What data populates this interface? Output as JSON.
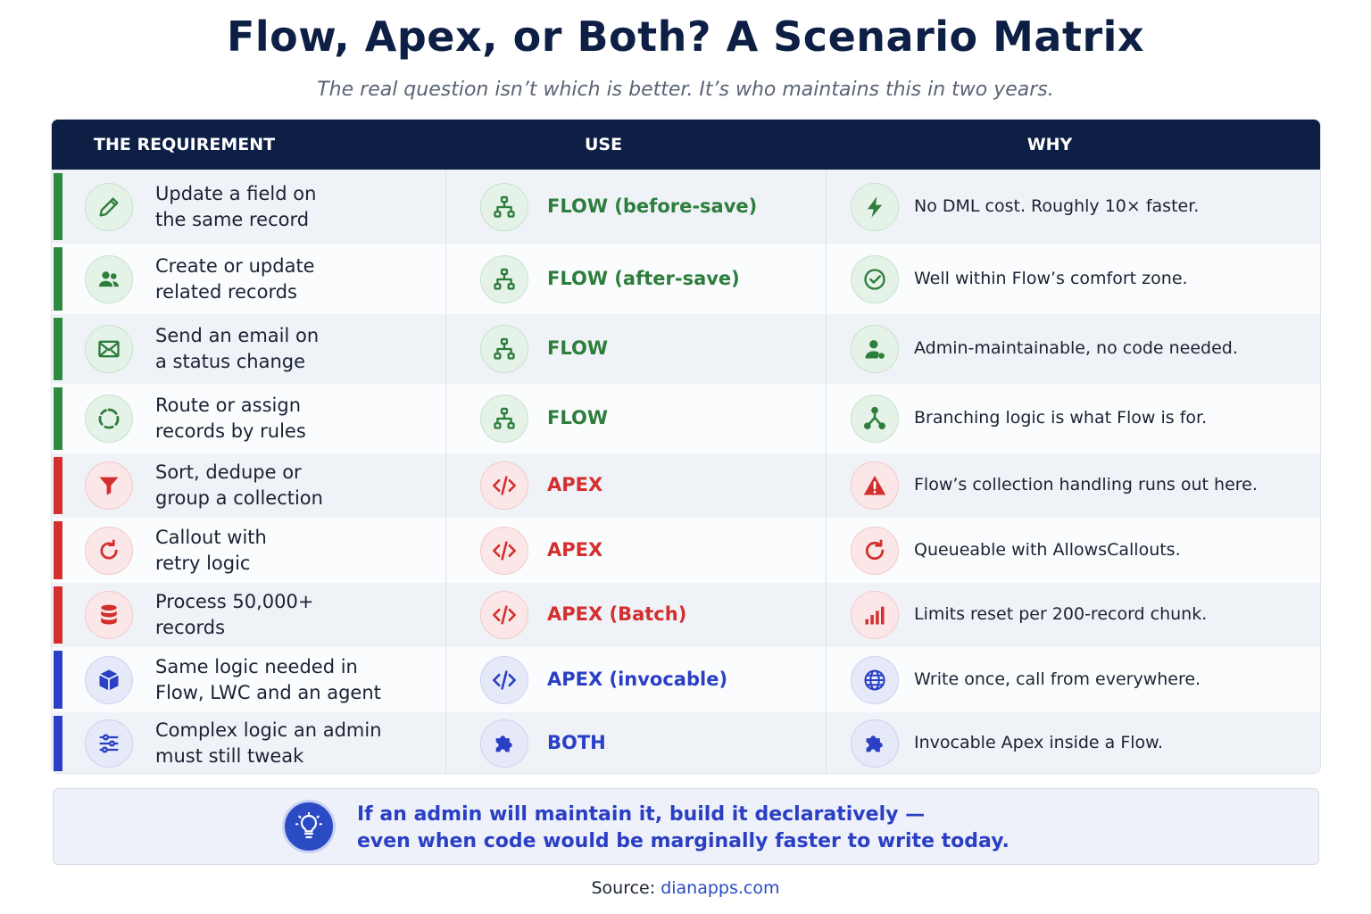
{
  "title": "Flow, Apex, or Both? A Scenario Matrix",
  "subtitle": "The real question isn’t which is better. It’s who maintains this in two years.",
  "headers": {
    "requirement": "THE REQUIREMENT",
    "use": "USE",
    "why": "WHY"
  },
  "colors": {
    "header_bg": "#0e1f45",
    "flow_green": "#2d8a3e",
    "apex_red": "#d32f2f",
    "invocable_blue": "#2a3fc4"
  },
  "rows": [
    {
      "category": "flow",
      "req_icon": "pencil-icon",
      "req_line1": "Update a field on",
      "req_line2": "the same record",
      "use_icon": "flow-hierarchy-icon",
      "use": "FLOW (before-save)",
      "why_icon": "lightning-icon",
      "why": "No DML cost. Roughly 10× faster."
    },
    {
      "category": "flow",
      "req_icon": "users-icon",
      "req_line1": "Create or update",
      "req_line2": "related records",
      "use_icon": "flow-hierarchy-icon",
      "use": "FLOW (after-save)",
      "why_icon": "check-circle-icon",
      "why": "Well within Flow’s comfort zone."
    },
    {
      "category": "flow",
      "req_icon": "envelope-icon",
      "req_line1": "Send an email on",
      "req_line2": "a status change",
      "use_icon": "flow-hierarchy-icon",
      "use": "FLOW",
      "why_icon": "admin-user-icon",
      "why": "Admin-maintainable, no code needed."
    },
    {
      "category": "flow",
      "req_icon": "route-cycle-icon",
      "req_line1": "Route or assign",
      "req_line2": "records by rules",
      "use_icon": "flow-hierarchy-icon",
      "use": "FLOW",
      "why_icon": "branch-icon",
      "why": "Branching logic is what Flow is for."
    },
    {
      "category": "apex",
      "req_icon": "filter-icon",
      "req_line1": "Sort, dedupe or",
      "req_line2": "group a collection",
      "use_icon": "code-icon",
      "use": "APEX",
      "why_icon": "warning-icon",
      "why": "Flow’s collection handling runs out here."
    },
    {
      "category": "apex",
      "req_icon": "retry-icon",
      "req_line1": "Callout with",
      "req_line2": "retry logic",
      "use_icon": "code-icon",
      "use": "APEX",
      "why_icon": "refresh-icon",
      "why": "Queueable with AllowsCallouts."
    },
    {
      "category": "apex",
      "req_icon": "database-icon",
      "req_line1": "Process 50,000+",
      "req_line2": "records",
      "use_icon": "code-icon",
      "use": "APEX (Batch)",
      "why_icon": "bar-chart-icon",
      "why": "Limits reset per 200-record chunk."
    },
    {
      "category": "both",
      "req_icon": "cube-icon",
      "req_line1": "Same logic needed in",
      "req_line2": "Flow, LWC and an agent",
      "use_icon": "code-icon",
      "use": "APEX (invocable)",
      "why_icon": "globe-icon",
      "why": "Write once, call from everywhere."
    },
    {
      "category": "both",
      "req_icon": "sliders-icon",
      "req_line1": "Complex logic an admin",
      "req_line2": "must still tweak",
      "use_icon": "puzzle-icon",
      "use": "BOTH",
      "why_icon": "puzzle-icon",
      "why": "Invocable Apex inside a Flow."
    }
  ],
  "callout": {
    "icon": "lightbulb-icon",
    "line1": "If an admin will maintain it, build it declaratively —",
    "line2": "even when code would be marginally faster to write today."
  },
  "source": {
    "label": "Source:",
    "link": "dianapps.com"
  }
}
